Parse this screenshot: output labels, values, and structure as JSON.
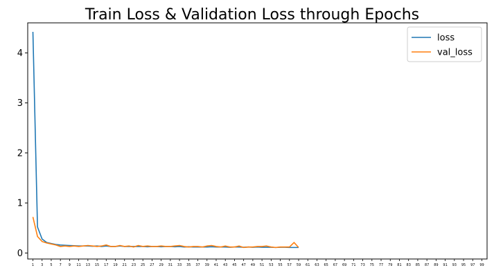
{
  "chart_data": {
    "type": "line",
    "title": "Train Loss & Validation Loss through Epochs",
    "xlabel": "",
    "ylabel": "",
    "x": [
      1,
      2,
      3,
      4,
      5,
      6,
      7,
      8,
      9,
      10,
      11,
      12,
      13,
      14,
      15,
      16,
      17,
      18,
      19,
      20,
      21,
      22,
      23,
      24,
      25,
      26,
      27,
      28,
      29,
      30,
      31,
      32,
      33,
      34,
      35,
      36,
      37,
      38,
      39,
      40,
      41,
      42,
      43,
      44,
      45,
      46,
      47,
      48,
      49,
      50,
      51,
      52,
      53,
      54,
      55,
      56,
      57,
      58,
      59
    ],
    "x_tick_labels": [
      "1",
      "3",
      "5",
      "7",
      "9",
      "11",
      "13",
      "15",
      "17",
      "19",
      "21",
      "23",
      "25",
      "27",
      "29",
      "31",
      "33",
      "35",
      "37",
      "39",
      "41",
      "43",
      "45",
      "47",
      "49",
      "51",
      "53",
      "55",
      "57",
      "59",
      "61",
      "63",
      "65",
      "67",
      "69",
      "71",
      "73",
      "75",
      "77",
      "79",
      "81",
      "83",
      "85",
      "87",
      "89",
      "91",
      "93",
      "95",
      "97",
      "99"
    ],
    "xlim": [
      1,
      99
    ],
    "y_ticks": [
      "0",
      "1",
      "2",
      "3",
      "4"
    ],
    "ylim": [
      -0.12,
      4.6
    ],
    "grid": false,
    "legend_position": "top-right",
    "series": [
      {
        "name": "loss",
        "color": "#1f77b4",
        "values": [
          4.42,
          0.52,
          0.28,
          0.21,
          0.19,
          0.17,
          0.16,
          0.155,
          0.15,
          0.145,
          0.14,
          0.14,
          0.14,
          0.135,
          0.14,
          0.13,
          0.14,
          0.13,
          0.13,
          0.14,
          0.13,
          0.13,
          0.13,
          0.13,
          0.13,
          0.125,
          0.13,
          0.13,
          0.125,
          0.13,
          0.13,
          0.125,
          0.13,
          0.12,
          0.125,
          0.12,
          0.12,
          0.12,
          0.12,
          0.125,
          0.12,
          0.12,
          0.12,
          0.115,
          0.12,
          0.12,
          0.115,
          0.12,
          0.115,
          0.12,
          0.115,
          0.115,
          0.115,
          0.11,
          0.115,
          0.115,
          0.11,
          0.11,
          0.11
        ]
      },
      {
        "name": "val_loss",
        "color": "#ff7f0e",
        "values": [
          0.72,
          0.33,
          0.23,
          0.2,
          0.18,
          0.16,
          0.13,
          0.14,
          0.13,
          0.14,
          0.13,
          0.14,
          0.15,
          0.14,
          0.13,
          0.14,
          0.16,
          0.13,
          0.13,
          0.15,
          0.13,
          0.14,
          0.12,
          0.15,
          0.13,
          0.14,
          0.13,
          0.13,
          0.14,
          0.13,
          0.13,
          0.14,
          0.15,
          0.13,
          0.12,
          0.13,
          0.13,
          0.12,
          0.14,
          0.15,
          0.13,
          0.12,
          0.14,
          0.12,
          0.12,
          0.14,
          0.11,
          0.12,
          0.12,
          0.13,
          0.13,
          0.14,
          0.12,
          0.11,
          0.12,
          0.12,
          0.12,
          0.21,
          0.11
        ]
      }
    ]
  }
}
